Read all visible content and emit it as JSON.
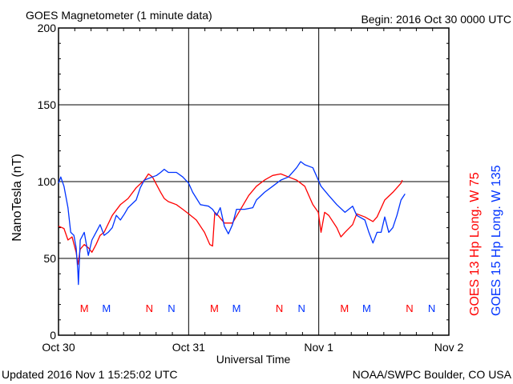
{
  "chart_data": {
    "type": "line",
    "title": "GOES Magnetometer (1 minute data)",
    "begin": "Begin:  2016 Oct 30 0000 UTC",
    "xlabel": "Universal Time",
    "ylabel": "NanoTesla (nT)",
    "ylim": [
      0,
      200
    ],
    "yticks": [
      0,
      50,
      100,
      150,
      200
    ],
    "xlim": [
      "2016-10-30 00:00",
      "2016-11-02 00:00"
    ],
    "xticks": [
      {
        "t": "2016-10-30 00:00",
        "label": "Oct 30"
      },
      {
        "t": "2016-10-31 00:00",
        "label": "Oct 31"
      },
      {
        "t": "2016-11-01 00:00",
        "label": "Nov 1"
      },
      {
        "t": "2016-11-02 00:00",
        "label": "Nov 2"
      }
    ],
    "grid": true,
    "series": [
      {
        "name": "GOES 13 Hp",
        "legend": "GOES 13 Hp  Long. W 75",
        "color": "#ff0000",
        "points": [
          [
            "2016-10-30 00:00",
            71
          ],
          [
            "2016-10-30 01:00",
            69.5
          ],
          [
            "2016-10-30 01:45",
            62
          ],
          [
            "2016-10-30 02:30",
            64
          ],
          [
            "2016-10-30 03:15",
            54
          ],
          [
            "2016-10-30 03:35",
            46
          ],
          [
            "2016-10-30 04:00",
            56
          ],
          [
            "2016-10-30 04:45",
            59
          ],
          [
            "2016-10-30 05:30",
            57
          ],
          [
            "2016-10-30 06:10",
            54
          ],
          [
            "2016-10-30 06:55",
            59
          ],
          [
            "2016-10-30 07:40",
            65
          ],
          [
            "2016-10-30 08:25",
            67
          ],
          [
            "2016-10-30 09:55",
            78
          ],
          [
            "2016-10-30 11:25",
            85
          ],
          [
            "2016-10-30 12:50",
            89
          ],
          [
            "2016-10-30 14:20",
            96
          ],
          [
            "2016-10-30 15:50",
            101
          ],
          [
            "2016-10-30 16:35",
            105
          ],
          [
            "2016-10-30 17:20",
            103
          ],
          [
            "2016-10-30 18:05",
            98
          ],
          [
            "2016-10-30 18:50",
            93
          ],
          [
            "2016-10-30 19:30",
            89
          ],
          [
            "2016-10-30 20:15",
            87
          ],
          [
            "2016-10-30 21:45",
            85
          ],
          [
            "2016-10-30 22:55",
            82
          ],
          [
            "2016-10-31 00:00",
            79
          ],
          [
            "2016-10-31 01:25",
            75
          ],
          [
            "2016-10-31 02:55",
            67
          ],
          [
            "2016-10-31 03:55",
            59
          ],
          [
            "2016-10-31 04:25",
            58
          ],
          [
            "2016-10-31 04:50",
            80
          ],
          [
            "2016-10-31 05:25",
            78
          ],
          [
            "2016-10-31 06:35",
            73
          ],
          [
            "2016-10-31 08:05",
            73
          ],
          [
            "2016-10-31 09:35",
            82
          ],
          [
            "2016-10-31 11:05",
            91
          ],
          [
            "2016-10-31 12:30",
            97
          ],
          [
            "2016-10-31 14:00",
            101
          ],
          [
            "2016-10-31 15:30",
            104
          ],
          [
            "2016-10-31 17:00",
            105
          ],
          [
            "2016-10-31 18:25",
            103
          ],
          [
            "2016-10-31 19:55",
            101
          ],
          [
            "2016-10-31 21:25",
            97
          ],
          [
            "2016-10-31 22:55",
            85
          ],
          [
            "2016-10-31 23:55",
            80
          ],
          [
            "2016-11-01 00:25",
            67
          ],
          [
            "2016-11-01 01:05",
            80
          ],
          [
            "2016-11-01 01:50",
            78
          ],
          [
            "2016-11-01 03:20",
            70
          ],
          [
            "2016-11-01 04:05",
            64
          ],
          [
            "2016-11-01 04:50",
            67
          ],
          [
            "2016-11-01 06:15",
            72
          ],
          [
            "2016-11-01 07:00",
            79
          ],
          [
            "2016-11-01 08:30",
            77
          ],
          [
            "2016-11-01 10:00",
            74
          ],
          [
            "2016-11-01 10:45",
            77
          ],
          [
            "2016-11-01 12:10",
            88
          ],
          [
            "2016-11-01 13:40",
            93
          ],
          [
            "2016-11-01 15:10",
            99
          ],
          [
            "2016-11-01 15:25",
            101
          ]
        ],
        "markers": [
          {
            "t": "2016-10-30 04:45",
            "label": "M"
          },
          {
            "t": "2016-10-30 16:45",
            "label": "N"
          },
          {
            "t": "2016-10-31 04:45",
            "label": "M"
          },
          {
            "t": "2016-10-31 16:45",
            "label": "N"
          },
          {
            "t": "2016-11-01 04:45",
            "label": "M"
          },
          {
            "t": "2016-11-01 16:45",
            "label": "N"
          }
        ]
      },
      {
        "name": "GOES 15 Hp",
        "legend": "GOES 15 Hp  Long. W 135",
        "color": "#0033ff",
        "points": [
          [
            "2016-10-30 00:00",
            99
          ],
          [
            "2016-10-30 00:25",
            103
          ],
          [
            "2016-10-30 01:00",
            97
          ],
          [
            "2016-10-30 01:45",
            83
          ],
          [
            "2016-10-30 02:15",
            67
          ],
          [
            "2016-10-30 02:50",
            65
          ],
          [
            "2016-10-30 03:15",
            57
          ],
          [
            "2016-10-30 03:35",
            41
          ],
          [
            "2016-10-30 03:40",
            33
          ],
          [
            "2016-10-30 04:00",
            62
          ],
          [
            "2016-10-30 04:45",
            67
          ],
          [
            "2016-10-30 05:30",
            52
          ],
          [
            "2016-10-30 06:10",
            62
          ],
          [
            "2016-10-30 06:55",
            67
          ],
          [
            "2016-10-30 07:40",
            72
          ],
          [
            "2016-10-30 08:25",
            65
          ],
          [
            "2016-10-30 09:10",
            67
          ],
          [
            "2016-10-30 09:55",
            70
          ],
          [
            "2016-10-30 10:40",
            78
          ],
          [
            "2016-10-30 11:25",
            75
          ],
          [
            "2016-10-30 12:10",
            79
          ],
          [
            "2016-10-30 12:50",
            83
          ],
          [
            "2016-10-30 14:20",
            88
          ],
          [
            "2016-10-30 15:05",
            96
          ],
          [
            "2016-10-30 15:50",
            101
          ],
          [
            "2016-10-30 17:20",
            103
          ],
          [
            "2016-10-30 18:05",
            104
          ],
          [
            "2016-10-30 18:50",
            106
          ],
          [
            "2016-10-30 19:30",
            108
          ],
          [
            "2016-10-30 20:15",
            106
          ],
          [
            "2016-10-30 21:45",
            106
          ],
          [
            "2016-10-30 22:55",
            103
          ],
          [
            "2016-10-31 00:00",
            99
          ],
          [
            "2016-10-31 00:45",
            93
          ],
          [
            "2016-10-31 02:10",
            85
          ],
          [
            "2016-10-31 03:40",
            84
          ],
          [
            "2016-10-31 04:25",
            82
          ],
          [
            "2016-10-31 05:10",
            78
          ],
          [
            "2016-10-31 05:50",
            83
          ],
          [
            "2016-10-31 06:35",
            71
          ],
          [
            "2016-10-31 07:20",
            66
          ],
          [
            "2016-10-31 08:05",
            72
          ],
          [
            "2016-10-31 08:50",
            82
          ],
          [
            "2016-10-31 10:20",
            82
          ],
          [
            "2016-10-31 11:50",
            83
          ],
          [
            "2016-10-31 12:30",
            88
          ],
          [
            "2016-10-31 14:00",
            93
          ],
          [
            "2016-10-31 15:30",
            97
          ],
          [
            "2016-10-31 17:00",
            101
          ],
          [
            "2016-10-31 18:25",
            103
          ],
          [
            "2016-10-31 19:55",
            109
          ],
          [
            "2016-10-31 20:40",
            113
          ],
          [
            "2016-10-31 21:25",
            111
          ],
          [
            "2016-10-31 22:55",
            109
          ],
          [
            "2016-10-31 23:55",
            101
          ],
          [
            "2016-11-01 00:25",
            97
          ],
          [
            "2016-11-01 01:50",
            91
          ],
          [
            "2016-11-01 03:20",
            85
          ],
          [
            "2016-11-01 04:50",
            80
          ],
          [
            "2016-11-01 06:15",
            84
          ],
          [
            "2016-11-01 07:00",
            78
          ],
          [
            "2016-11-01 08:30",
            75
          ],
          [
            "2016-11-01 09:15",
            67
          ],
          [
            "2016-11-01 10:00",
            60
          ],
          [
            "2016-11-01 10:45",
            67
          ],
          [
            "2016-11-01 11:30",
            67
          ],
          [
            "2016-11-01 12:10",
            77
          ],
          [
            "2016-11-01 12:55",
            67
          ],
          [
            "2016-11-01 13:40",
            70
          ],
          [
            "2016-11-01 14:25",
            78
          ],
          [
            "2016-11-01 15:10",
            88
          ],
          [
            "2016-11-01 15:55",
            92
          ]
        ],
        "markers": [
          {
            "t": "2016-10-30 08:50",
            "label": "M"
          },
          {
            "t": "2016-10-30 20:50",
            "label": "N"
          },
          {
            "t": "2016-10-31 08:50",
            "label": "M"
          },
          {
            "t": "2016-10-31 20:50",
            "label": "N"
          },
          {
            "t": "2016-11-01 08:50",
            "label": "M"
          },
          {
            "t": "2016-11-01 20:50",
            "label": "N"
          }
        ]
      }
    ]
  },
  "footer": {
    "updated": "Updated 2016 Nov  1 15:25:02 UTC",
    "credit": "NOAA/SWPC Boulder, CO USA"
  }
}
